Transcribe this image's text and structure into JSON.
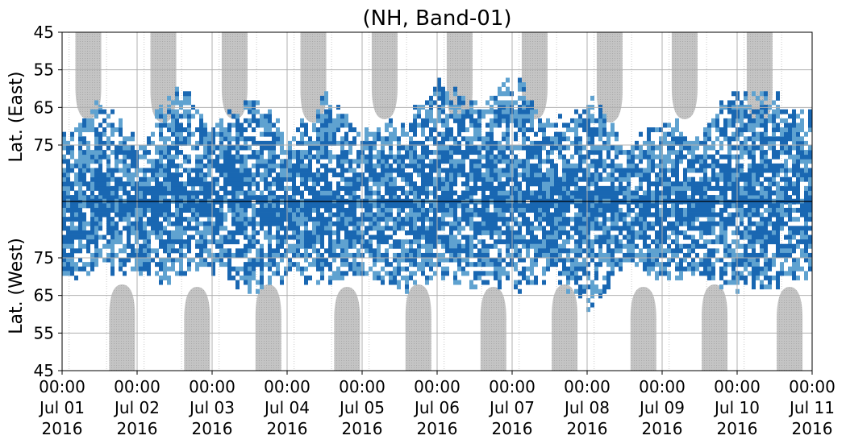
{
  "chart_data": {
    "type": "heatmap",
    "title": "(NH, Band-01)",
    "ylabel_top": "Lat. (East)",
    "ylabel_bottom": "Lat. (West)",
    "x_ticks": [
      {
        "l1": "00:00",
        "l2": "Jul 01",
        "l3": "2016"
      },
      {
        "l1": "00:00",
        "l2": "Jul 02",
        "l3": "2016"
      },
      {
        "l1": "00:00",
        "l2": "Jul 03",
        "l3": "2016"
      },
      {
        "l1": "00:00",
        "l2": "Jul 04",
        "l3": "2016"
      },
      {
        "l1": "00:00",
        "l2": "Jul 05",
        "l3": "2016"
      },
      {
        "l1": "00:00",
        "l2": "Jul 06",
        "l3": "2016"
      },
      {
        "l1": "00:00",
        "l2": "Jul 07",
        "l3": "2016"
      },
      {
        "l1": "00:00",
        "l2": "Jul 08",
        "l3": "2016"
      },
      {
        "l1": "00:00",
        "l2": "Jul 09",
        "l3": "2016"
      },
      {
        "l1": "00:00",
        "l2": "Jul 10",
        "l3": "2016"
      },
      {
        "l1": "00:00",
        "l2": "Jul 11",
        "l3": "2016"
      }
    ],
    "y_ticks_east": [
      "45",
      "55",
      "65",
      "75"
    ],
    "y_ticks_west": [
      "75",
      "65",
      "55",
      "45"
    ],
    "colors": {
      "dark": "#1967b2",
      "light": "#5fa2d0",
      "night": "#bdbdbd",
      "grid": "#b0b0b0",
      "center_line": "#000000"
    },
    "occurrence_profile": [
      {
        "day": 0.0,
        "east": 72,
        "west": 68
      },
      {
        "day": 0.5,
        "east": 62,
        "west": 72
      },
      {
        "day": 1.0,
        "east": 74,
        "west": 70
      },
      {
        "day": 1.5,
        "east": 58,
        "west": 68
      },
      {
        "day": 2.0,
        "east": 70,
        "west": 72
      },
      {
        "day": 2.5,
        "east": 62,
        "west": 66
      },
      {
        "day": 3.0,
        "east": 72,
        "west": 70
      },
      {
        "day": 3.5,
        "east": 62,
        "west": 68
      },
      {
        "day": 4.0,
        "east": 72,
        "west": 70
      },
      {
        "day": 4.5,
        "east": 68,
        "west": 66
      },
      {
        "day": 5.0,
        "east": 58,
        "west": 70
      },
      {
        "day": 5.5,
        "east": 64,
        "west": 68
      },
      {
        "day": 6.0,
        "east": 56,
        "west": 66
      },
      {
        "day": 6.5,
        "east": 70,
        "west": 70
      },
      {
        "day": 7.0,
        "east": 62,
        "west": 62
      },
      {
        "day": 7.5,
        "east": 74,
        "west": 72
      },
      {
        "day": 8.0,
        "east": 68,
        "west": 68
      },
      {
        "day": 8.5,
        "east": 72,
        "west": 70
      },
      {
        "day": 9.0,
        "east": 58,
        "west": 66
      },
      {
        "day": 9.5,
        "east": 62,
        "west": 68
      },
      {
        "day": 10.0,
        "east": 66,
        "west": 70
      }
    ]
  }
}
